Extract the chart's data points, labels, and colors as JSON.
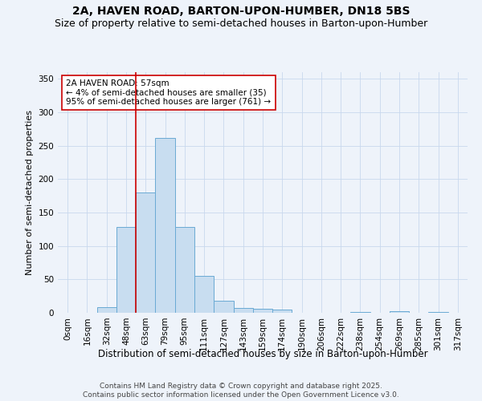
{
  "title1": "2A, HAVEN ROAD, BARTON-UPON-HUMBER, DN18 5BS",
  "title2": "Size of property relative to semi-detached houses in Barton-upon-Humber",
  "xlabel": "Distribution of semi-detached houses by size in Barton-upon-Humber",
  "ylabel": "Number of semi-detached properties",
  "bar_values": [
    0,
    0,
    8,
    128,
    180,
    262,
    128,
    55,
    18,
    7,
    6,
    5,
    0,
    0,
    0,
    1,
    0,
    3,
    0,
    1,
    0
  ],
  "bin_labels": [
    "0sqm",
    "16sqm",
    "32sqm",
    "48sqm",
    "63sqm",
    "79sqm",
    "95sqm",
    "111sqm",
    "127sqm",
    "143sqm",
    "159sqm",
    "174sqm",
    "190sqm",
    "206sqm",
    "222sqm",
    "238sqm",
    "254sqm",
    "269sqm",
    "285sqm",
    "301sqm",
    "317sqm"
  ],
  "bar_color": "#c8ddf0",
  "bar_edge_color": "#6aaad4",
  "grid_color": "#c8d8ee",
  "background_color": "#eef3fa",
  "vline_x": 3.5,
  "vline_color": "#cc0000",
  "annotation_text": "2A HAVEN ROAD: 57sqm\n← 4% of semi-detached houses are smaller (35)\n95% of semi-detached houses are larger (761) →",
  "ylim": [
    0,
    360
  ],
  "yticks": [
    0,
    50,
    100,
    150,
    200,
    250,
    300,
    350
  ],
  "footer1": "Contains HM Land Registry data © Crown copyright and database right 2025.",
  "footer2": "Contains public sector information licensed under the Open Government Licence v3.0.",
  "title1_fontsize": 10,
  "title2_fontsize": 9,
  "xlabel_fontsize": 8.5,
  "ylabel_fontsize": 8,
  "tick_fontsize": 7.5,
  "annotation_fontsize": 7.5,
  "footer_fontsize": 6.5
}
